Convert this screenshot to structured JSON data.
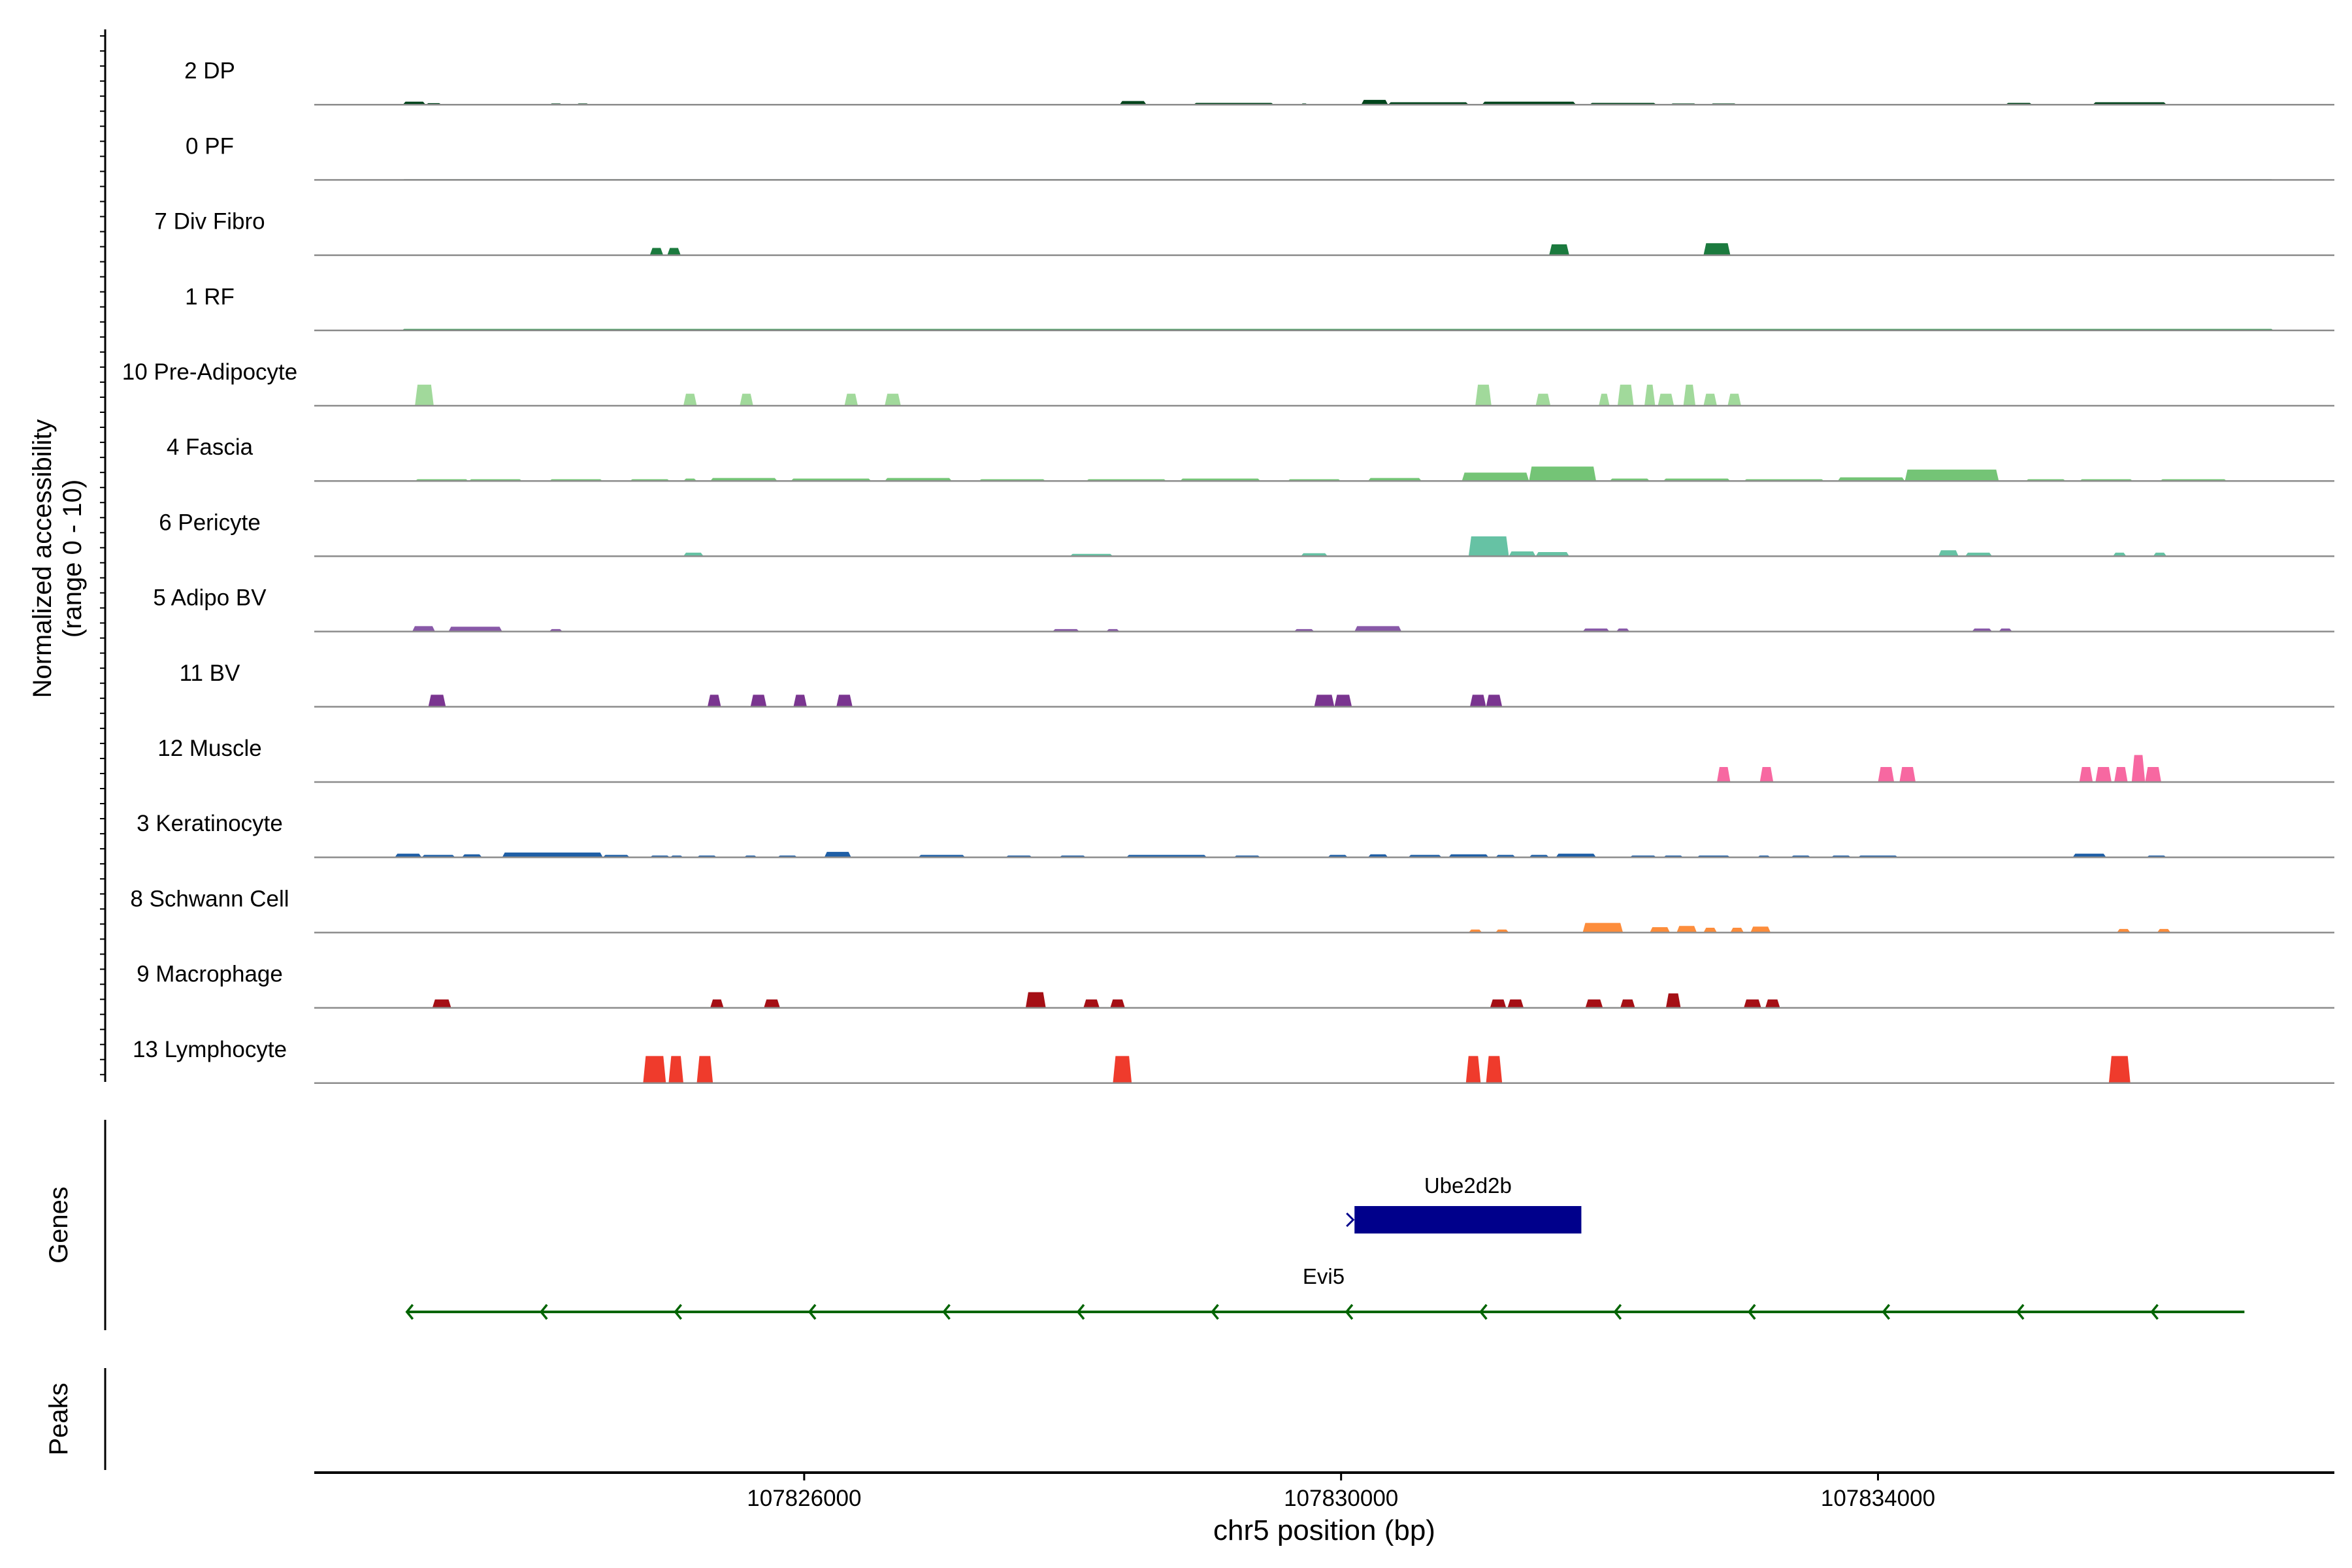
{
  "figure": {
    "y_axis_title": [
      "Normalized accessibility",
      "(range 0 - 10)"
    ],
    "genes_panel_label": "Genes",
    "peaks_panel_label": "Peaks",
    "x_axis_title": "chr5 position (bp)"
  },
  "chart_data": {
    "type": "area",
    "xlim": [
      107822350,
      107837400
    ],
    "ylim": [
      0,
      10
    ],
    "x_ticks": [
      107826000,
      107830000,
      107834000
    ],
    "x_tick_labels": [
      "107826000",
      "107830000",
      "107834000"
    ],
    "tracks": [
      {
        "label": "2 DP",
        "color": "#00441b",
        "segments": [
          [
            107823010,
            107823180,
            0.5
          ],
          [
            107823180,
            107823300,
            0.25
          ],
          [
            107824100,
            107824200,
            0.2
          ],
          [
            107824300,
            107824400,
            0.2
          ],
          [
            107828350,
            107828550,
            0.6
          ],
          [
            107828900,
            107829500,
            0.3
          ],
          [
            107829700,
            107829750,
            0.2
          ],
          [
            107830150,
            107830350,
            0.8
          ],
          [
            107830350,
            107830950,
            0.4
          ],
          [
            107831050,
            107831750,
            0.5
          ],
          [
            107831850,
            107832350,
            0.3
          ],
          [
            107832450,
            107832650,
            0.2
          ],
          [
            107832750,
            107832950,
            0.2
          ],
          [
            107834950,
            107835150,
            0.3
          ],
          [
            107835600,
            107836150,
            0.4
          ]
        ]
      },
      {
        "label": "0 PF",
        "color": "#00441b",
        "segments": [
          [
            107823000,
            107836950,
            0.12
          ]
        ]
      },
      {
        "label": "7 Div Fibro",
        "color": "#1b7a3e",
        "segments": [
          [
            107824850,
            107824950,
            1.2
          ],
          [
            107824980,
            107825080,
            1.2
          ],
          [
            107831550,
            107831700,
            1.8
          ],
          [
            107832700,
            107832900,
            2.0
          ]
        ]
      },
      {
        "label": "1 RF",
        "color": "#2c974b",
        "segments": [
          [
            107823000,
            107836950,
            0.25
          ]
        ]
      },
      {
        "label": "10 Pre-Adipocyte",
        "color": "#a1d99b",
        "segments": [
          [
            107823100,
            107823240,
            3.5
          ],
          [
            107825100,
            107825200,
            2.0
          ],
          [
            107825520,
            107825620,
            2.0
          ],
          [
            107826300,
            107826400,
            2.0
          ],
          [
            107826600,
            107826720,
            2.0
          ],
          [
            107831000,
            107831120,
            3.5
          ],
          [
            107831450,
            107831560,
            2.0
          ],
          [
            107831920,
            107832000,
            2.0
          ],
          [
            107832060,
            107832180,
            3.5
          ],
          [
            107832260,
            107832340,
            3.5
          ],
          [
            107832360,
            107832480,
            2.0
          ],
          [
            107832550,
            107832640,
            3.5
          ],
          [
            107832700,
            107832800,
            2.0
          ],
          [
            107832880,
            107832980,
            2.0
          ]
        ]
      },
      {
        "label": "4 Fascia",
        "color": "#74c476",
        "segments": [
          [
            107823100,
            107823500,
            0.3
          ],
          [
            107823500,
            107823900,
            0.3
          ],
          [
            107824100,
            107824500,
            0.3
          ],
          [
            107824700,
            107825000,
            0.3
          ],
          [
            107825100,
            107825200,
            0.4
          ],
          [
            107825300,
            107825800,
            0.5
          ],
          [
            107825900,
            107826500,
            0.4
          ],
          [
            107826600,
            107827100,
            0.5
          ],
          [
            107827300,
            107827800,
            0.3
          ],
          [
            107828100,
            107828700,
            0.3
          ],
          [
            107828800,
            107829400,
            0.4
          ],
          [
            107829600,
            107830000,
            0.3
          ],
          [
            107830200,
            107830600,
            0.5
          ],
          [
            107830900,
            107831400,
            1.4
          ],
          [
            107831400,
            107831900,
            2.4
          ],
          [
            107832000,
            107832300,
            0.4
          ],
          [
            107832400,
            107832900,
            0.4
          ],
          [
            107833000,
            107833600,
            0.3
          ],
          [
            107833700,
            107834200,
            0.6
          ],
          [
            107834200,
            107834900,
            1.9
          ],
          [
            107835100,
            107835400,
            0.3
          ],
          [
            107835500,
            107835900,
            0.3
          ],
          [
            107836100,
            107836600,
            0.3
          ]
        ]
      },
      {
        "label": "6 Pericyte",
        "color": "#66c2a4",
        "segments": [
          [
            107825100,
            107825250,
            0.6
          ],
          [
            107827980,
            107828300,
            0.4
          ],
          [
            107829700,
            107829900,
            0.5
          ],
          [
            107830950,
            107831250,
            3.3
          ],
          [
            107831250,
            107831450,
            0.8
          ],
          [
            107831450,
            107831700,
            0.7
          ],
          [
            107834450,
            107834600,
            1.0
          ],
          [
            107834650,
            107834850,
            0.6
          ],
          [
            107835750,
            107835850,
            0.6
          ],
          [
            107836050,
            107836150,
            0.6
          ]
        ]
      },
      {
        "label": "5 Adipo BV",
        "color": "#8859a8",
        "segments": [
          [
            107823080,
            107823250,
            0.9
          ],
          [
            107823350,
            107823750,
            0.8
          ],
          [
            107824100,
            107824200,
            0.4
          ],
          [
            107827850,
            107828050,
            0.4
          ],
          [
            107828250,
            107828350,
            0.4
          ],
          [
            107829650,
            107829800,
            0.4
          ],
          [
            107830100,
            107830450,
            0.9
          ],
          [
            107831800,
            107832000,
            0.5
          ],
          [
            107832050,
            107832150,
            0.5
          ],
          [
            107834700,
            107834850,
            0.5
          ],
          [
            107834900,
            107835000,
            0.5
          ]
        ]
      },
      {
        "label": "11 BV",
        "color": "#7a3590",
        "segments": [
          [
            107823200,
            107823330,
            2.0
          ],
          [
            107825280,
            107825380,
            2.0
          ],
          [
            107825600,
            107825720,
            2.0
          ],
          [
            107825920,
            107826020,
            2.0
          ],
          [
            107826240,
            107826360,
            2.0
          ],
          [
            107829800,
            107829950,
            2.0
          ],
          [
            107829950,
            107830080,
            2.0
          ],
          [
            107830960,
            107831080,
            2.0
          ],
          [
            107831080,
            107831200,
            2.0
          ]
        ]
      },
      {
        "label": "12 Muscle",
        "color": "#f768a1",
        "segments": [
          [
            107832800,
            107832900,
            2.5
          ],
          [
            107833120,
            107833220,
            2.5
          ],
          [
            107834000,
            107834120,
            2.5
          ],
          [
            107834160,
            107834280,
            2.5
          ],
          [
            107835500,
            107835600,
            2.5
          ],
          [
            107835620,
            107835740,
            2.5
          ],
          [
            107835760,
            107835860,
            2.5
          ],
          [
            107835890,
            107835990,
            4.5
          ],
          [
            107835990,
            107836110,
            2.5
          ]
        ]
      },
      {
        "label": "3 Keratinocyte",
        "color": "#1f5fa6",
        "segments": [
          [
            107822950,
            107823150,
            0.6
          ],
          [
            107823150,
            107823400,
            0.4
          ],
          [
            107823450,
            107823600,
            0.5
          ],
          [
            107823750,
            107824500,
            0.8
          ],
          [
            107824500,
            107824700,
            0.4
          ],
          [
            107824850,
            107825000,
            0.3
          ],
          [
            107825000,
            107825100,
            0.3
          ],
          [
            107825200,
            107825350,
            0.3
          ],
          [
            107825550,
            107825650,
            0.3
          ],
          [
            107825800,
            107825950,
            0.3
          ],
          [
            107826150,
            107826350,
            0.9
          ],
          [
            107826850,
            107827200,
            0.4
          ],
          [
            107827500,
            107827700,
            0.3
          ],
          [
            107827900,
            107828100,
            0.3
          ],
          [
            107828400,
            107829000,
            0.4
          ],
          [
            107829200,
            107829400,
            0.3
          ],
          [
            107829900,
            107830050,
            0.4
          ],
          [
            107830200,
            107830350,
            0.5
          ],
          [
            107830500,
            107830750,
            0.4
          ],
          [
            107830800,
            107831100,
            0.5
          ],
          [
            107831150,
            107831300,
            0.4
          ],
          [
            107831400,
            107831550,
            0.4
          ],
          [
            107831600,
            107831900,
            0.6
          ],
          [
            107832150,
            107832350,
            0.3
          ],
          [
            107832400,
            107832550,
            0.3
          ],
          [
            107832650,
            107832900,
            0.3
          ],
          [
            107833100,
            107833200,
            0.3
          ],
          [
            107833350,
            107833500,
            0.3
          ],
          [
            107833650,
            107833800,
            0.3
          ],
          [
            107833850,
            107834150,
            0.3
          ],
          [
            107835450,
            107835700,
            0.6
          ],
          [
            107836000,
            107836150,
            0.3
          ]
        ]
      },
      {
        "label": "8 Schwann Cell",
        "color": "#fd8d3c",
        "segments": [
          [
            107830950,
            107831050,
            0.5
          ],
          [
            107831150,
            107831250,
            0.5
          ],
          [
            107831800,
            107832100,
            1.6
          ],
          [
            107832300,
            107832450,
            0.9
          ],
          [
            107832500,
            107832650,
            1.1
          ],
          [
            107832700,
            107832800,
            0.8
          ],
          [
            107832900,
            107833000,
            0.8
          ],
          [
            107833050,
            107833200,
            1.0
          ],
          [
            107835780,
            107835880,
            0.6
          ],
          [
            107836080,
            107836180,
            0.6
          ]
        ]
      },
      {
        "label": "9 Macrophage",
        "color": "#a50f15",
        "segments": [
          [
            107823230,
            107823370,
            1.4
          ],
          [
            107825300,
            107825400,
            1.4
          ],
          [
            107825700,
            107825820,
            1.4
          ],
          [
            107827650,
            107827800,
            2.6
          ],
          [
            107828080,
            107828200,
            1.4
          ],
          [
            107828280,
            107828390,
            1.4
          ],
          [
            107831110,
            107831230,
            1.4
          ],
          [
            107831240,
            107831360,
            1.4
          ],
          [
            107831820,
            107831950,
            1.4
          ],
          [
            107832080,
            107832190,
            1.4
          ],
          [
            107832420,
            107832530,
            2.4
          ],
          [
            107833000,
            107833130,
            1.4
          ],
          [
            107833160,
            107833270,
            1.4
          ]
        ]
      },
      {
        "label": "13 Lymphocyte",
        "color": "#ef3b2c",
        "segments": [
          [
            107824800,
            107824970,
            4.5
          ],
          [
            107824990,
            107825100,
            4.5
          ],
          [
            107825200,
            107825320,
            4.5
          ],
          [
            107828300,
            107828440,
            4.5
          ],
          [
            107830930,
            107831040,
            4.5
          ],
          [
            107831080,
            107831200,
            4.5
          ],
          [
            107835720,
            107835880,
            4.5
          ]
        ]
      }
    ],
    "genes": [
      {
        "name": "Ube2d2b",
        "start": 107830100,
        "end": 107831790,
        "strand": "+",
        "color": "#00008b"
      },
      {
        "name": "Evi5",
        "start": 107823040,
        "end": 107836730,
        "strand": "-",
        "color": "#006400"
      }
    ],
    "grid": false,
    "legend": false
  }
}
